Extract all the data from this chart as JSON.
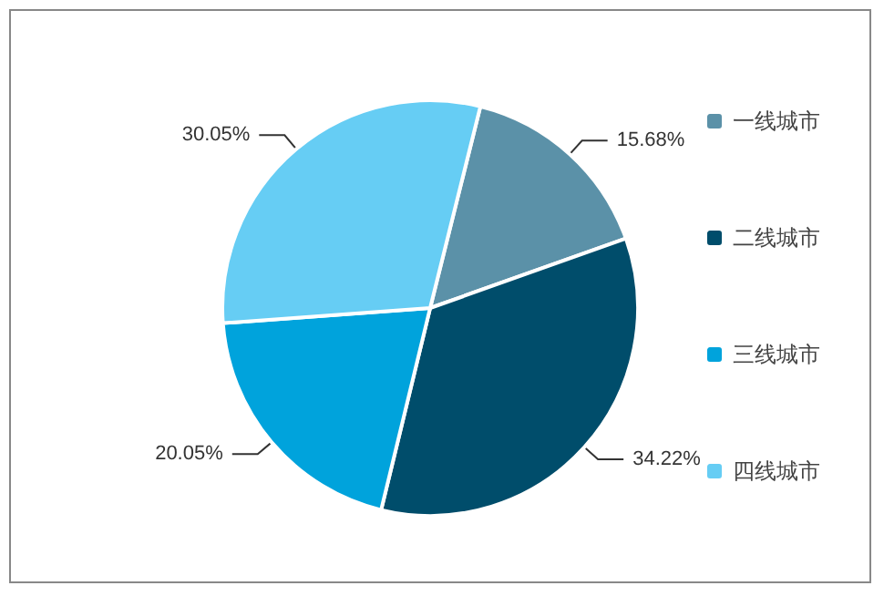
{
  "chart_data": {
    "type": "pie",
    "categories": [
      "一线城市",
      "二线城市",
      "三线城市",
      "四线城市"
    ],
    "values": [
      15.68,
      34.22,
      20.05,
      30.05
    ],
    "value_labels": [
      "15.68%",
      "34.22%",
      "20.05%",
      "30.05%"
    ],
    "colors": [
      "#5b91a8",
      "#004d6b",
      "#00a3dc",
      "#66cdf4"
    ],
    "legend": "right"
  }
}
